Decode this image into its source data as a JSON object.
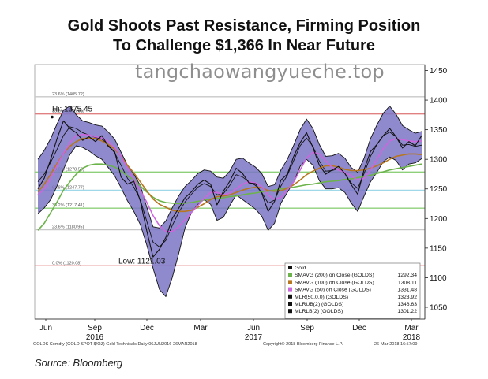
{
  "title_line1": "Gold Shoots Past Resistance, Firming Position",
  "title_line2": "To Challenge $1,366 In Near Future",
  "watermark": "tangchaowangyueche.top",
  "footer": {
    "left": "GOLDS Comdty (GOLD SPOT $/OZ) Gold Technicals  Daily 06JUN2016-26MAR2018",
    "middle": "Copyright© 2018 Bloomberg Finance L.P.",
    "right": "26-Mar-2018 16:57:09"
  },
  "source": "Source: Bloomberg",
  "chart_data": {
    "type": "line",
    "ylim": [
      1030,
      1460
    ],
    "yticks": [
      1050,
      1100,
      1150,
      1200,
      1250,
      1300,
      1350,
      1400,
      1450
    ],
    "ytick_labels": [
      "1050",
      "1100",
      "1150",
      "1200",
      "1250",
      "1300",
      "1350",
      "1400",
      "1450"
    ],
    "xtick_labels": [
      "Jun",
      "Sep",
      "Dec",
      "Mar",
      "Jun",
      "Sep",
      "Dec",
      "Mar"
    ],
    "year_labels": [
      {
        "label": "2016",
        "at": "Sep"
      },
      {
        "label": "2017",
        "at": "Jun"
      },
      {
        "label": "2018",
        "at": "Mar"
      }
    ],
    "annotations": [
      {
        "text": "Hi: 1375.45",
        "value": 1375.45
      },
      {
        "text": "Low: 1121.03",
        "value": 1121.03
      }
    ],
    "fib_levels": [
      {
        "label": "23.6% (1405.72)",
        "value": 1405.72,
        "color": "#c8c8c8"
      },
      {
        "label": "38.2% (1376.51)",
        "value": 1376.51,
        "color": "#e08080"
      },
      {
        "label": "50.0% (1278.58)",
        "value": 1278.58,
        "color": "#8ed07a"
      },
      {
        "label": "61.8% (1247.77)",
        "value": 1247.77,
        "color": "#9fd8e8"
      },
      {
        "label": "38.2% (1217.41)",
        "value": 1217.41,
        "color": "#8ed07a"
      },
      {
        "label": "23.6% (1180.95)",
        "value": 1180.95,
        "color": "#c8c8c8"
      },
      {
        "label": "0.0% (1120.08)",
        "value": 1120.08,
        "color": "#e08080"
      }
    ],
    "series": [
      {
        "name": "Gold",
        "value": "",
        "color": "#111111",
        "values": [
          1250,
          1268,
          1300,
          1335,
          1365,
          1352,
          1345,
          1332,
          1338,
          1330,
          1340,
          1322,
          1313,
          1270,
          1258,
          1263,
          1230,
          1180,
          1135,
          1148,
          1168,
          1200,
          1217,
          1235,
          1245,
          1258,
          1265,
          1258,
          1223,
          1246,
          1263,
          1285,
          1276,
          1260,
          1259,
          1243,
          1212,
          1229,
          1265,
          1275,
          1305,
          1328,
          1345,
          1320,
          1290,
          1275,
          1282,
          1288,
          1276,
          1257,
          1241,
          1283,
          1313,
          1325,
          1340,
          1352,
          1338,
          1319,
          1330,
          1323,
          1340
        ]
      },
      {
        "name": "SMAVG (200) on Close (GOLDS)",
        "value": "1292.34",
        "color": "#6bb34a",
        "values": [
          1180,
          1192,
          1210,
          1228,
          1248,
          1262,
          1275,
          1285,
          1290,
          1292,
          1292,
          1290,
          1287,
          1280,
          1272,
          1265,
          1255,
          1245,
          1236,
          1230,
          1227,
          1226,
          1225,
          1226,
          1227,
          1229,
          1231,
          1233,
          1234,
          1235,
          1237,
          1238,
          1240,
          1242,
          1243,
          1245,
          1246,
          1248,
          1250,
          1252,
          1253,
          1255,
          1257,
          1258,
          1260,
          1262,
          1263,
          1264,
          1266,
          1267,
          1269,
          1271,
          1273,
          1276,
          1279,
          1282,
          1284,
          1286,
          1288,
          1290,
          1292
        ]
      },
      {
        "name": "SMAVG (100) on Close (GOLDS)",
        "value": "1308.11",
        "color": "#b8761f",
        "values": [
          1245,
          1258,
          1275,
          1293,
          1310,
          1322,
          1330,
          1335,
          1336,
          1335,
          1331,
          1325,
          1317,
          1305,
          1290,
          1277,
          1262,
          1247,
          1233,
          1224,
          1219,
          1214,
          1212,
          1212,
          1214,
          1219,
          1225,
          1232,
          1237,
          1238,
          1240,
          1244,
          1248,
          1251,
          1253,
          1252,
          1247,
          1246,
          1247,
          1251,
          1257,
          1265,
          1274,
          1280,
          1285,
          1289,
          1289,
          1287,
          1283,
          1281,
          1281,
          1282,
          1285,
          1289,
          1294,
          1300,
          1305,
          1307,
          1309,
          1309,
          1308
        ]
      },
      {
        "name": "SMAVG (50) on Close (GOLDS)",
        "value": "1331.48",
        "color": "#cc66dd",
        "values": [
          1240,
          1250,
          1268,
          1290,
          1310,
          1328,
          1340,
          1342,
          1341,
          1338,
          1336,
          1330,
          1320,
          1305,
          1285,
          1265,
          1248,
          1228,
          1205,
          1188,
          1178,
          1178,
          1186,
          1198,
          1210,
          1222,
          1234,
          1244,
          1244,
          1240,
          1243,
          1250,
          1258,
          1262,
          1260,
          1254,
          1240,
          1232,
          1236,
          1248,
          1262,
          1282,
          1302,
          1312,
          1309,
          1298,
          1286,
          1282,
          1278,
          1272,
          1265,
          1268,
          1282,
          1300,
          1318,
          1331,
          1335,
          1333,
          1331,
          1330,
          1331
        ]
      },
      {
        "name": "MLR(50,0,0) (GOLDS)",
        "value": "1323.92",
        "color": "#111111",
        "values": [
          1262,
          1275,
          1295,
          1317,
          1340,
          1355,
          1352,
          1345,
          1341,
          1337,
          1334,
          1324,
          1311,
          1290,
          1268,
          1253,
          1232,
          1196,
          1160,
          1152,
          1163,
          1188,
          1210,
          1228,
          1241,
          1253,
          1259,
          1254,
          1240,
          1242,
          1256,
          1274,
          1270,
          1262,
          1256,
          1244,
          1226,
          1231,
          1255,
          1273,
          1298,
          1323,
          1336,
          1322,
          1297,
          1280,
          1281,
          1284,
          1276,
          1260,
          1251,
          1276,
          1305,
          1325,
          1340,
          1346,
          1338,
          1324,
          1325,
          1322,
          1324
        ]
      },
      {
        "name": "MLRUB(2) (GOLDS)",
        "value": "1346.63",
        "color": "#111111",
        "values": [
          1300,
          1315,
          1335,
          1360,
          1383,
          1390,
          1375,
          1365,
          1362,
          1358,
          1356,
          1346,
          1334,
          1312,
          1290,
          1275,
          1256,
          1220,
          1186,
          1184,
          1196,
          1218,
          1238,
          1254,
          1264,
          1276,
          1282,
          1280,
          1270,
          1268,
          1280,
          1300,
          1302,
          1294,
          1287,
          1276,
          1254,
          1257,
          1282,
          1300,
          1324,
          1350,
          1368,
          1352,
          1325,
          1305,
          1306,
          1310,
          1302,
          1286,
          1278,
          1302,
          1335,
          1358,
          1378,
          1390,
          1376,
          1357,
          1350,
          1344,
          1347
        ]
      },
      {
        "name": "MLRLB(2) (GOLDS)",
        "value": "1301.22",
        "color": "#111111",
        "values": [
          1208,
          1218,
          1232,
          1255,
          1283,
          1308,
          1323,
          1320,
          1314,
          1306,
          1300,
          1286,
          1272,
          1252,
          1230,
          1212,
          1190,
          1156,
          1116,
          1080,
          1068,
          1100,
          1140,
          1184,
          1210,
          1224,
          1232,
          1224,
          1197,
          1202,
          1222,
          1240,
          1232,
          1224,
          1216,
          1204,
          1180,
          1192,
          1226,
          1244,
          1262,
          1288,
          1300,
          1290,
          1264,
          1250,
          1250,
          1252,
          1244,
          1226,
          1212,
          1238,
          1262,
          1278,
          1296,
          1304,
          1298,
          1282,
          1292,
          1294,
          1301
        ]
      }
    ]
  }
}
